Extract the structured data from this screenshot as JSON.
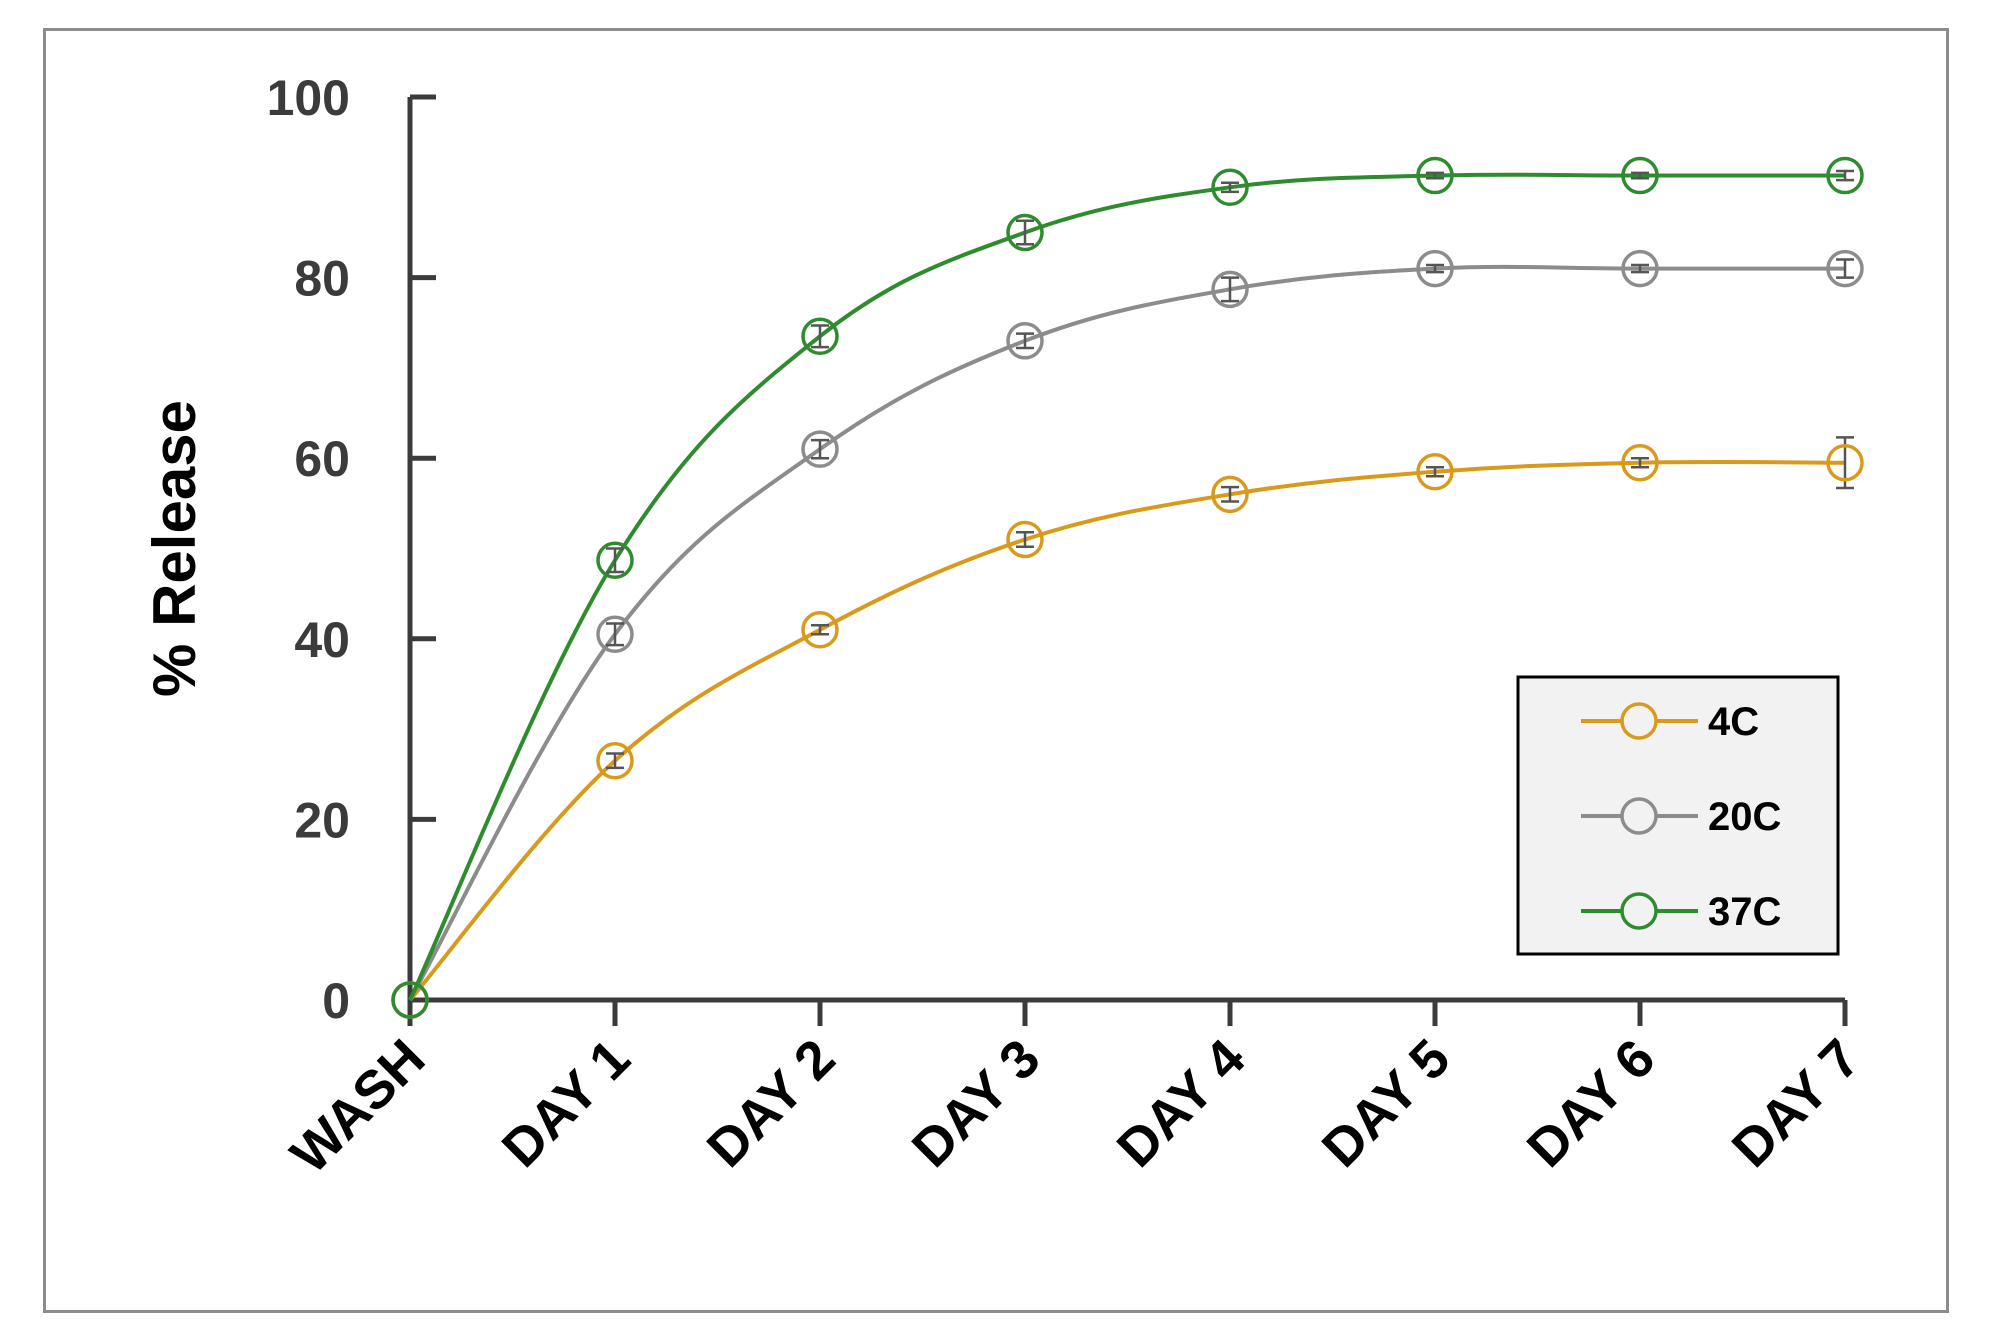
{
  "chart_data": {
    "type": "line",
    "title": "",
    "xlabel": "",
    "ylabel": "% Release",
    "ylim": [
      0,
      100
    ],
    "yticks": [
      0,
      20,
      40,
      60,
      80,
      100
    ],
    "categories": [
      "WASH",
      "DAY 1",
      "DAY 2",
      "DAY 3",
      "DAY 4",
      "DAY 5",
      "DAY 6",
      "DAY 7"
    ],
    "series": [
      {
        "name": "4C",
        "color": "#d99a1c",
        "values": [
          0,
          26.5,
          41,
          51,
          56,
          58.5,
          59.5,
          59.5
        ],
        "errors": [
          0,
          0.8,
          0.5,
          0.8,
          0.8,
          0.5,
          0.5,
          2.8
        ]
      },
      {
        "name": "20C",
        "color": "#8c8c8c",
        "values": [
          0,
          40.5,
          61,
          73,
          78.7,
          81,
          81,
          81
        ],
        "errors": [
          0,
          1.2,
          1.0,
          0.8,
          1.3,
          0.4,
          0.4,
          1.0
        ]
      },
      {
        "name": "37C",
        "color": "#2e8b2e",
        "values": [
          0,
          48.7,
          73.5,
          85,
          90,
          91.3,
          91.3,
          91.3
        ],
        "errors": [
          0,
          1.3,
          1.2,
          1.3,
          0.5,
          0.3,
          0.3,
          0.5
        ]
      }
    ],
    "grid": false,
    "legend": "bottom-right",
    "markers": "open-circle"
  }
}
